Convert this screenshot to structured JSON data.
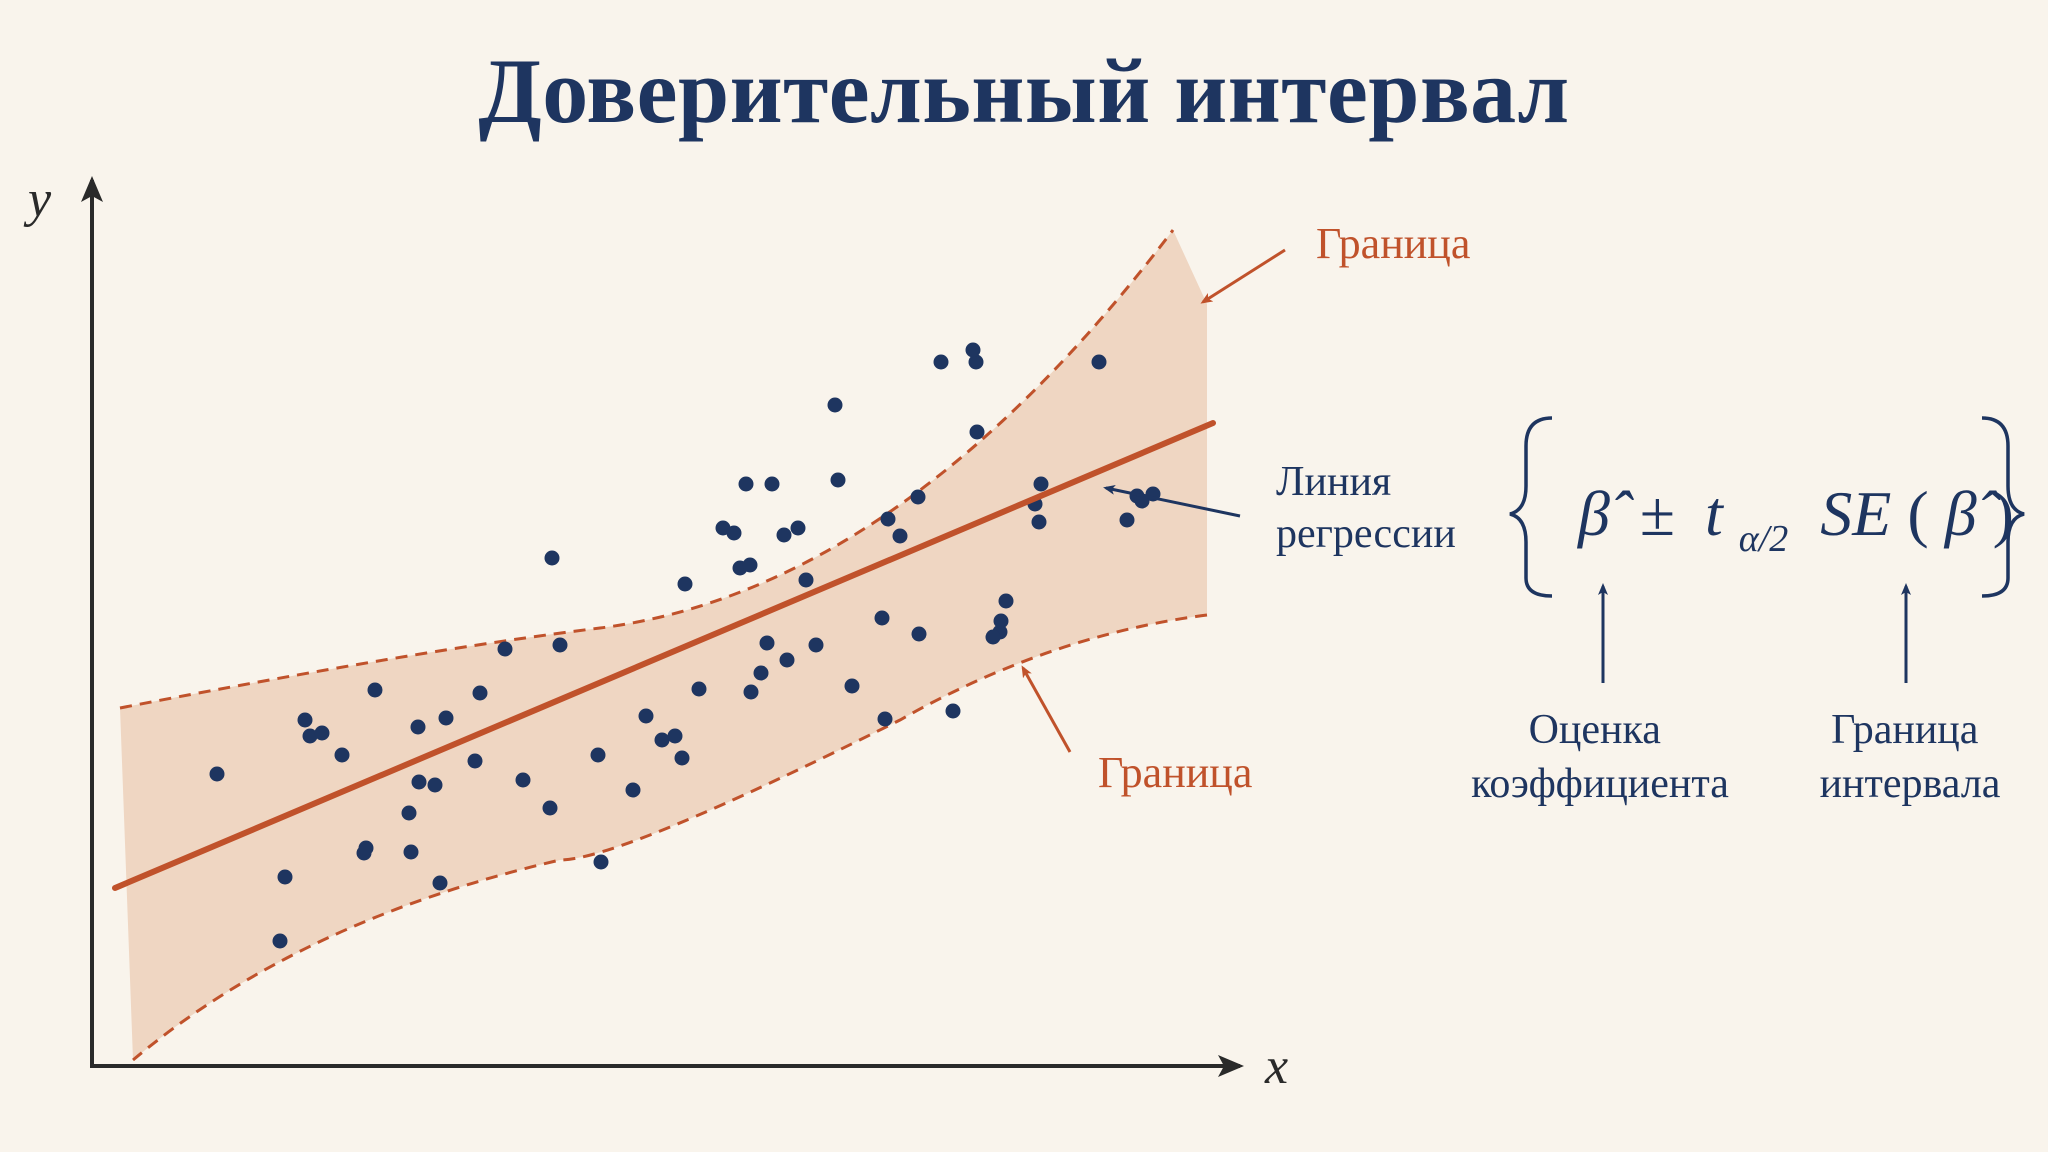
{
  "title": "Доверительный интервал",
  "axes": {
    "x_label": "x",
    "y_label": "y"
  },
  "annotations": {
    "upper_bound": "Граница",
    "lower_bound": "Граница",
    "regression_line": [
      "Линия",
      "регрессии"
    ],
    "coefficient_estimate": [
      "Оценка",
      "коэффициента"
    ],
    "interval_bound": [
      "Граница",
      "интервала"
    ]
  },
  "formula": {
    "text": "β̂ ± t_{α/2} SE(β̂)",
    "beta_hat": "β̂",
    "pm": "±",
    "t": "t",
    "t_subscript": "α/2",
    "se": "SE",
    "open_paren": "(",
    "close_paren": ")"
  },
  "colors": {
    "background": "#f9f4ec",
    "navy": "#1e3560",
    "orange": "#c0522b",
    "band_fill": "#efd6c2"
  },
  "chart_data": {
    "type": "scatter",
    "points": [
      [
        217,
        774
      ],
      [
        285,
        877
      ],
      [
        280,
        941
      ],
      [
        305,
        720
      ],
      [
        310,
        736
      ],
      [
        322,
        733
      ],
      [
        342,
        755
      ],
      [
        364,
        853
      ],
      [
        366,
        848
      ],
      [
        375,
        690
      ],
      [
        409,
        813
      ],
      [
        411,
        852
      ],
      [
        419,
        782
      ],
      [
        418,
        727
      ],
      [
        435,
        785
      ],
      [
        440,
        883
      ],
      [
        446,
        718
      ],
      [
        475,
        761
      ],
      [
        480,
        693
      ],
      [
        505,
        649
      ],
      [
        523,
        780
      ],
      [
        550,
        808
      ],
      [
        552,
        558
      ],
      [
        560,
        645
      ],
      [
        598,
        755
      ],
      [
        601,
        862
      ],
      [
        633,
        790
      ],
      [
        646,
        716
      ],
      [
        662,
        740
      ],
      [
        675,
        736
      ],
      [
        682,
        758
      ],
      [
        685,
        584
      ],
      [
        699,
        689
      ],
      [
        723,
        528
      ],
      [
        734,
        533
      ],
      [
        740,
        568
      ],
      [
        767,
        643
      ],
      [
        746,
        484
      ],
      [
        751,
        692
      ],
      [
        761,
        673
      ],
      [
        750,
        565
      ],
      [
        772,
        484
      ],
      [
        787,
        660
      ],
      [
        784,
        535
      ],
      [
        798,
        528
      ],
      [
        816,
        645
      ],
      [
        806,
        580
      ],
      [
        838,
        480
      ],
      [
        885,
        719
      ],
      [
        852,
        686
      ],
      [
        835,
        405
      ],
      [
        900,
        536
      ],
      [
        919,
        634
      ],
      [
        976,
        362
      ],
      [
        1000,
        632
      ],
      [
        973,
        350
      ],
      [
        882,
        618
      ],
      [
        993,
        637
      ],
      [
        888,
        519
      ],
      [
        918,
        497
      ],
      [
        941,
        362
      ],
      [
        953,
        711
      ],
      [
        977,
        432
      ],
      [
        1006,
        601
      ],
      [
        1001,
        621
      ],
      [
        1041,
        484
      ],
      [
        1035,
        504
      ],
      [
        1099,
        362
      ],
      [
        1137,
        496
      ],
      [
        1039,
        522
      ],
      [
        1142,
        501
      ],
      [
        1127,
        520
      ],
      [
        1153,
        494
      ]
    ]
  }
}
